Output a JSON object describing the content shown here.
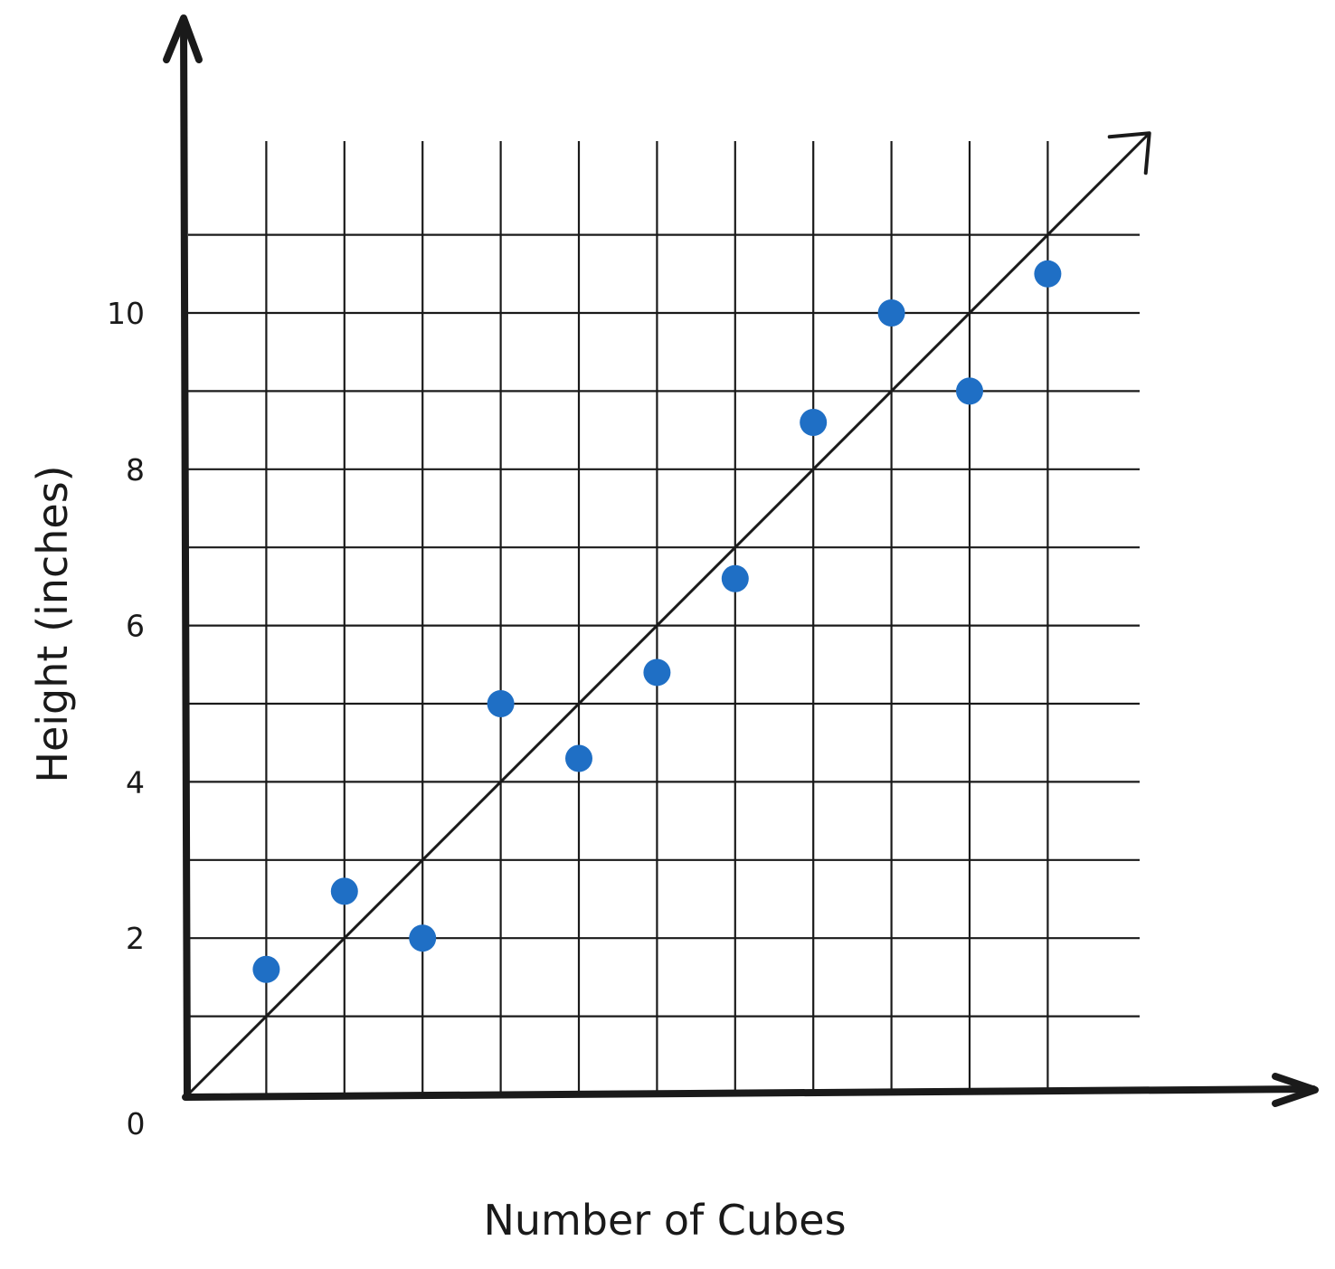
{
  "chart_data": {
    "type": "scatter",
    "title": "",
    "xlabel": "Number of Cubes",
    "ylabel": "Height (inches)",
    "xlim": [
      0,
      12
    ],
    "ylim": [
      0,
      12
    ],
    "grid": true,
    "origin_label": "0",
    "y_tick_labels": [
      {
        "value": 2,
        "label": "2"
      },
      {
        "value": 4,
        "label": "4"
      },
      {
        "value": 6,
        "label": "6"
      },
      {
        "value": 8,
        "label": "8"
      },
      {
        "value": 10,
        "label": "10"
      }
    ],
    "series": [
      {
        "points": [
          {
            "x": 1,
            "y": 1.6
          },
          {
            "x": 2,
            "y": 2.6
          },
          {
            "x": 3,
            "y": 2.0
          },
          {
            "x": 4,
            "y": 5.0
          },
          {
            "x": 5,
            "y": 4.3
          },
          {
            "x": 6,
            "y": 5.4
          },
          {
            "x": 7,
            "y": 6.6
          },
          {
            "x": 8,
            "y": 8.6
          },
          {
            "x": 9,
            "y": 10.0
          },
          {
            "x": 10,
            "y": 9.0
          },
          {
            "x": 11,
            "y": 10.5
          }
        ]
      }
    ],
    "trend_line": {
      "slope": 1,
      "intercept": 0,
      "x_end": 12.3
    },
    "colors": {
      "points": "#1f6fc5",
      "axes": "#1a1a1a",
      "grid": "#1a1a1a"
    }
  }
}
